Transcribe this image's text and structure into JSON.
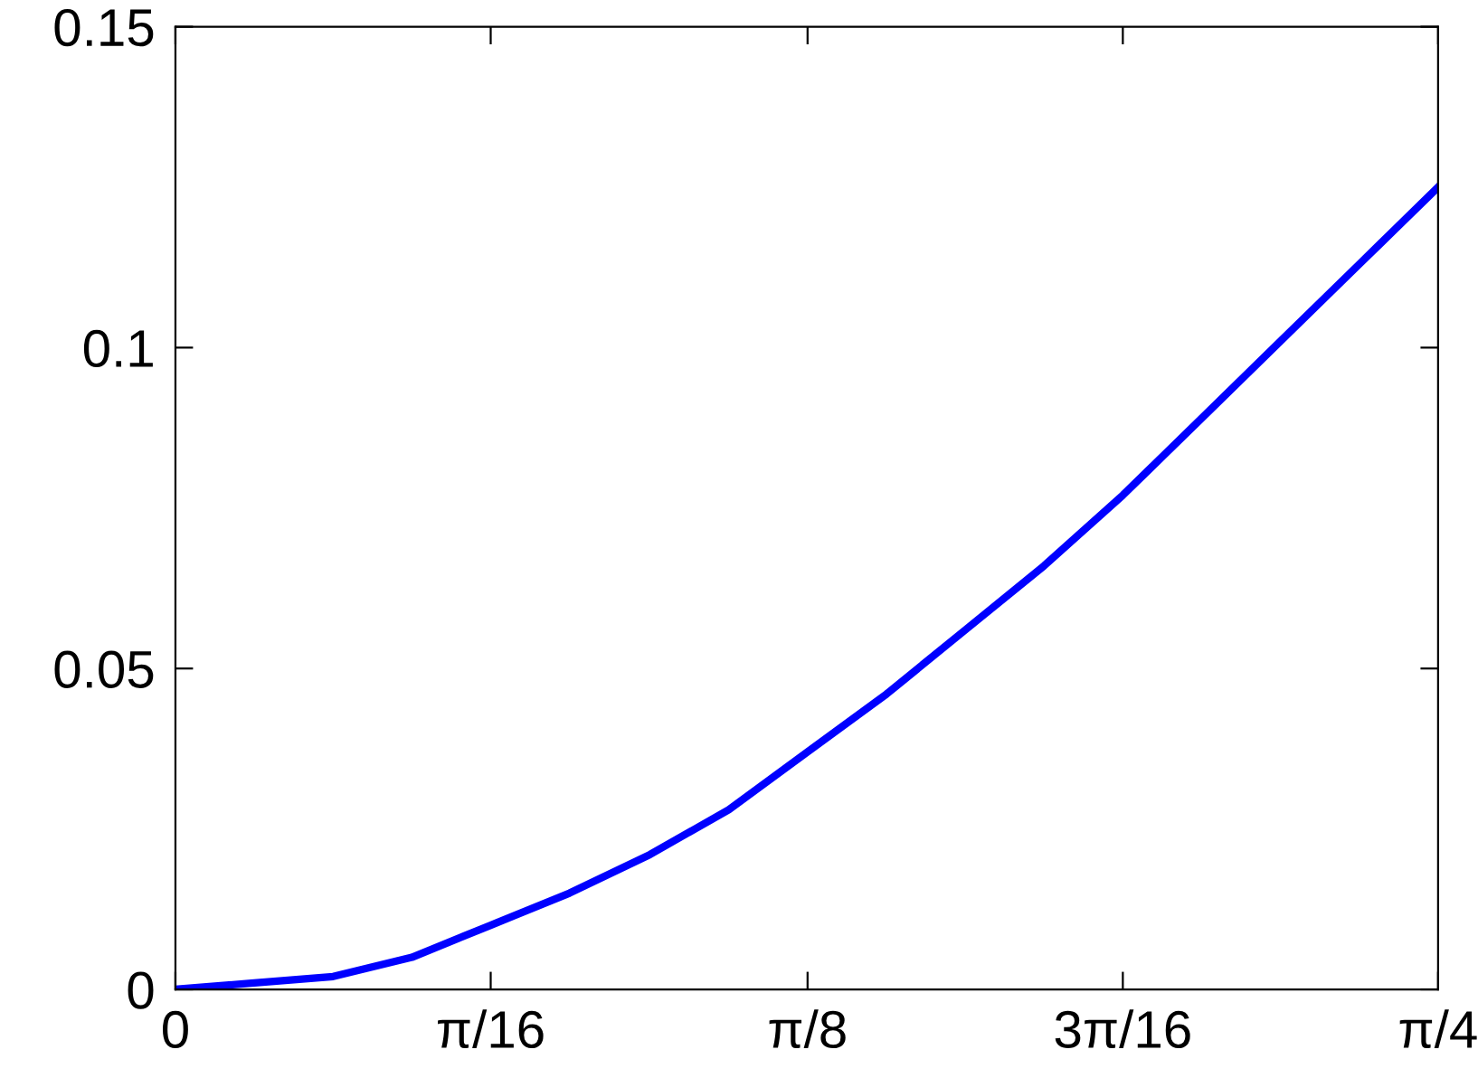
{
  "chart_data": {
    "type": "line",
    "x": [
      0,
      0.049,
      0.098,
      0.147,
      0.196,
      0.245,
      0.295,
      0.344,
      0.393,
      0.442,
      0.491,
      0.54,
      0.589,
      0.638,
      0.687,
      0.736,
      0.785
    ],
    "series": [
      {
        "color": "#0000ff",
        "values": [
          0,
          0.001,
          0.002,
          0.005,
          0.01,
          0.015,
          0.021,
          0.028,
          0.037,
          0.046,
          0.056,
          0.066,
          0.077,
          0.089,
          0.101,
          0.113,
          0.125
        ]
      }
    ],
    "xlim": [
      0,
      0.785
    ],
    "xticks": [
      0,
      {
        "value": 0.196,
        "label": "π/16"
      },
      {
        "value": 0.393,
        "label": "π/8"
      },
      {
        "value": 0.589,
        "label": "3π/16"
      },
      {
        "value": 0.785,
        "label": "π/4"
      }
    ],
    "ylim": [
      0,
      0.15
    ],
    "yticks": [
      0,
      0.05,
      0.1,
      0.15
    ],
    "grid": false,
    "marker": "none",
    "line_style": "solid"
  }
}
